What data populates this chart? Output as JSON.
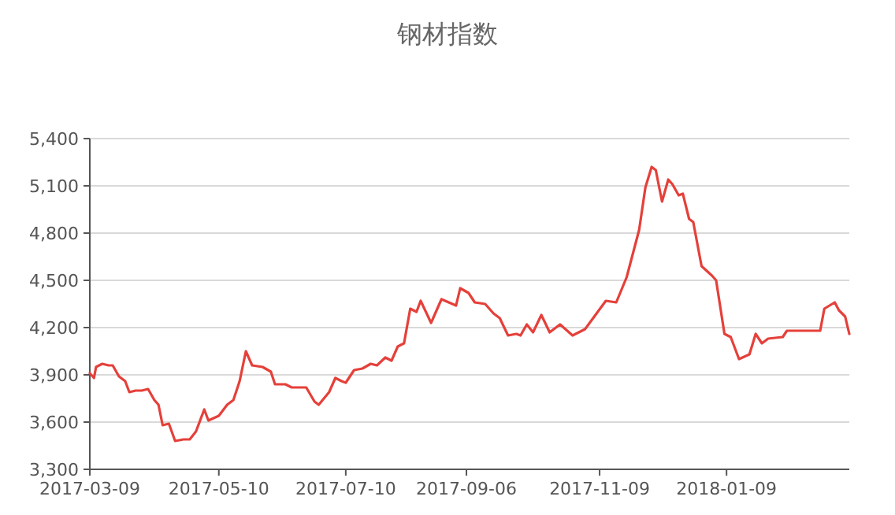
{
  "chart_data": {
    "type": "line",
    "title": "钢材指数",
    "x": [
      "2017-03-09",
      "2017-03-11",
      "2017-03-12",
      "2017-03-15",
      "2017-03-18",
      "2017-03-20",
      "2017-03-23",
      "2017-03-26",
      "2017-03-28",
      "2017-03-31",
      "2017-04-03",
      "2017-04-06",
      "2017-04-09",
      "2017-04-11",
      "2017-04-13",
      "2017-04-16",
      "2017-04-19",
      "2017-04-23",
      "2017-04-26",
      "2017-04-29",
      "2017-05-03",
      "2017-05-05",
      "2017-05-10",
      "2017-05-14",
      "2017-05-17",
      "2017-05-20",
      "2017-05-23",
      "2017-05-26",
      "2017-05-31",
      "2017-06-04",
      "2017-06-06",
      "2017-06-11",
      "2017-06-14",
      "2017-06-18",
      "2017-06-21",
      "2017-06-25",
      "2017-06-27",
      "2017-07-02",
      "2017-07-05",
      "2017-07-08",
      "2017-07-10",
      "2017-07-14",
      "2017-07-18",
      "2017-07-22",
      "2017-07-25",
      "2017-07-29",
      "2017-08-01",
      "2017-08-04",
      "2017-08-07",
      "2017-08-10",
      "2017-08-13",
      "2017-08-15",
      "2017-08-20",
      "2017-08-25",
      "2017-09-01",
      "2017-09-03",
      "2017-09-07",
      "2017-09-10",
      "2017-09-15",
      "2017-09-19",
      "2017-09-22",
      "2017-09-26",
      "2017-09-30",
      "2017-10-02",
      "2017-10-05",
      "2017-10-08",
      "2017-10-12",
      "2017-10-16",
      "2017-10-21",
      "2017-10-27",
      "2017-11-02",
      "2017-11-07",
      "2017-11-12",
      "2017-11-17",
      "2017-11-22",
      "2017-11-28",
      "2017-12-01",
      "2017-12-04",
      "2017-12-06",
      "2017-12-09",
      "2017-12-12",
      "2017-12-14",
      "2017-12-17",
      "2017-12-19",
      "2017-12-22",
      "2017-12-24",
      "2017-12-28",
      "2018-01-02",
      "2018-01-04",
      "2018-01-08",
      "2018-01-11",
      "2018-01-15",
      "2018-01-20",
      "2018-01-23",
      "2018-01-26",
      "2018-01-29",
      "2018-02-05",
      "2018-02-07",
      "2018-02-23",
      "2018-02-25",
      "2018-03-02",
      "2018-03-04",
      "2018-03-07",
      "2018-03-09"
    ],
    "series": [
      {
        "color": "#e5403a",
        "values": [
          3910,
          3880,
          3950,
          3970,
          3960,
          3960,
          3890,
          3860,
          3790,
          3800,
          3800,
          3810,
          3740,
          3710,
          3580,
          3590,
          3480,
          3490,
          3490,
          3540,
          3680,
          3610,
          3640,
          3710,
          3740,
          3860,
          4050,
          3960,
          3950,
          3920,
          3840,
          3840,
          3820,
          3820,
          3820,
          3730,
          3710,
          3790,
          3880,
          3860,
          3850,
          3930,
          3940,
          3970,
          3960,
          4010,
          3990,
          4080,
          4100,
          4320,
          4300,
          4370,
          4230,
          4380,
          4340,
          4450,
          4420,
          4360,
          4350,
          4290,
          4260,
          4150,
          4160,
          4150,
          4220,
          4170,
          4280,
          4170,
          4220,
          4150,
          4190,
          4280,
          4370,
          4360,
          4520,
          4820,
          5090,
          5220,
          5200,
          5000,
          5140,
          5110,
          5040,
          5050,
          4890,
          4870,
          4590,
          4530,
          4500,
          4160,
          4140,
          4000,
          4030,
          4160,
          4100,
          4130,
          4140,
          4180,
          4180,
          4320,
          4360,
          4310,
          4270,
          4160
        ]
      }
    ],
    "xlim": [
      "2017-03-09",
      "2018-03-09"
    ],
    "xticks": [
      {
        "value": "2017-03-09",
        "label": "2017-03-09"
      },
      {
        "value": "2017-05-10",
        "label": "2017-05-10"
      },
      {
        "value": "2017-07-10",
        "label": "2017-07-10"
      },
      {
        "value": "2017-09-06",
        "label": "2017-09-06"
      },
      {
        "value": "2017-11-09",
        "label": "2017-11-09"
      },
      {
        "value": "2018-01-09",
        "label": "2018-01-09"
      }
    ],
    "ylim": [
      3300,
      5400
    ],
    "yticks": [
      {
        "value": 3300,
        "label": "3,300"
      },
      {
        "value": 3600,
        "label": "3,600"
      },
      {
        "value": 3900,
        "label": "3,900"
      },
      {
        "value": 4200,
        "label": "4,200"
      },
      {
        "value": 4500,
        "label": "4,500"
      },
      {
        "value": 4800,
        "label": "4,800"
      },
      {
        "value": 5100,
        "label": "5,100"
      },
      {
        "value": 5400,
        "label": "5,400"
      }
    ],
    "grid": "y",
    "marker": "none",
    "line_style": "solid"
  }
}
